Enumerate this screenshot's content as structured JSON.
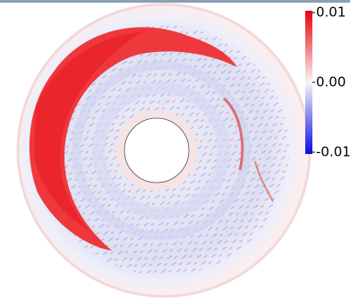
{
  "colorbar": {
    "lim": [
      -0.01,
      0.01
    ],
    "ticks": [
      {
        "value": 0.01,
        "label": "0.01"
      },
      {
        "value": 0,
        "label": "0.00"
      },
      {
        "value": -0.01,
        "label": "-0.01"
      }
    ]
  }
}
